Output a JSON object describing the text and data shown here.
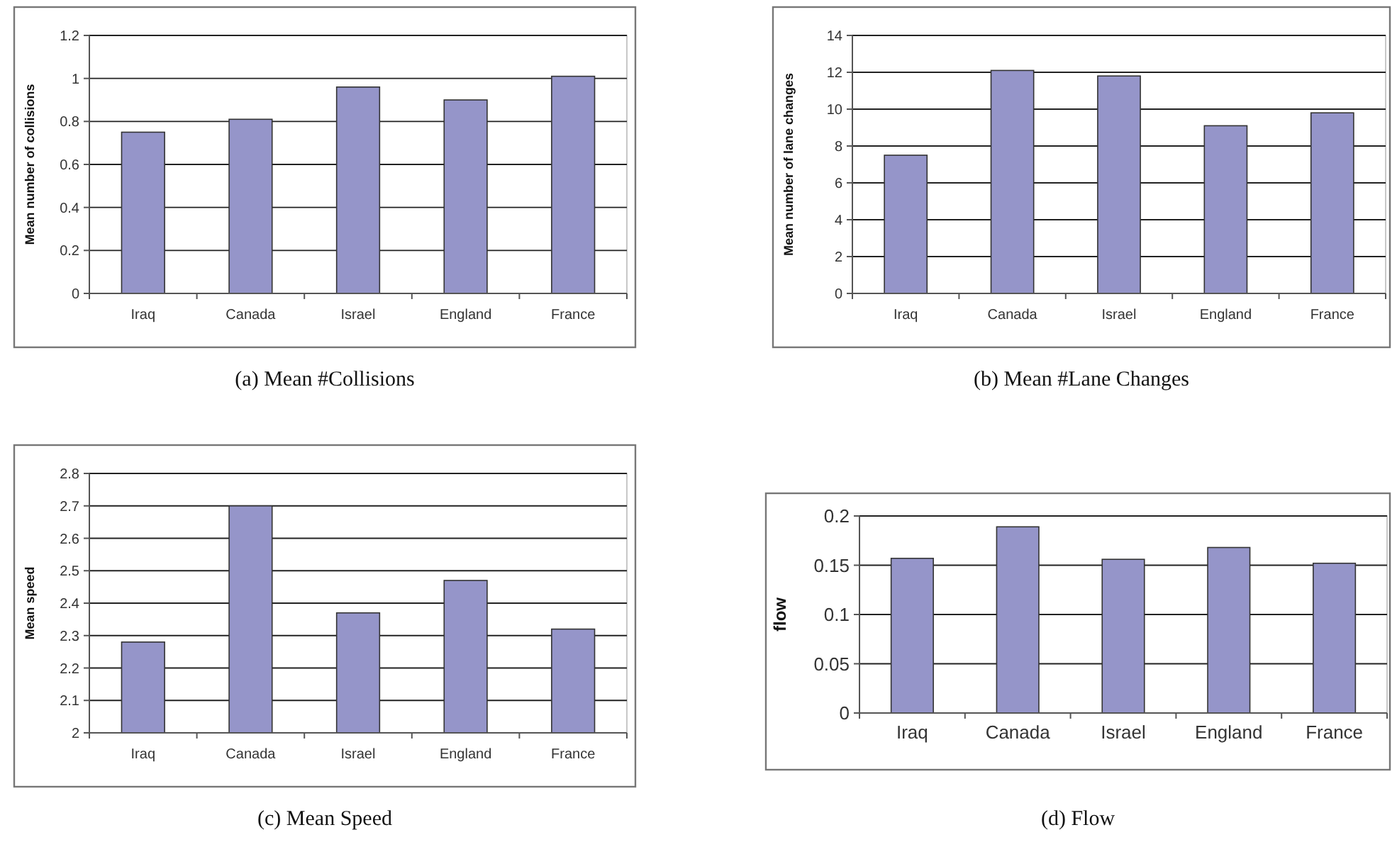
{
  "chart_data": [
    {
      "type": "bar",
      "title": "(a)  Mean #Collisions",
      "ylabel": "Mean number of collisions",
      "categories": [
        "Iraq",
        "Canada",
        "Israel",
        "England",
        "France"
      ],
      "values": [
        0.75,
        0.81,
        0.96,
        0.9,
        1.01
      ],
      "color": "#9595c9",
      "ylim": [
        0,
        1.2
      ],
      "yticks": [
        0,
        0.2,
        0.4,
        0.6,
        0.8,
        1,
        1.2
      ],
      "grid": "y"
    },
    {
      "type": "bar",
      "title": "(b)  Mean #Lane Changes",
      "ylabel": "Mean number of lane changes",
      "categories": [
        "Iraq",
        "Canada",
        "Israel",
        "England",
        "France"
      ],
      "values": [
        7.5,
        12.1,
        11.8,
        9.1,
        9.8
      ],
      "color": "#9595c9",
      "ylim": [
        0,
        14
      ],
      "yticks": [
        0,
        2,
        4,
        6,
        8,
        10,
        12,
        14
      ],
      "grid": "y"
    },
    {
      "type": "bar",
      "title": "(c)  Mean Speed",
      "ylabel": "Mean speed",
      "categories": [
        "Iraq",
        "Canada",
        "Israel",
        "England",
        "France"
      ],
      "values": [
        2.28,
        2.7,
        2.37,
        2.47,
        2.32
      ],
      "color": "#9595c9",
      "ylim": [
        2,
        2.8
      ],
      "yticks": [
        2,
        2.1,
        2.2,
        2.3,
        2.4,
        2.5,
        2.6,
        2.7,
        2.8
      ],
      "grid": "y"
    },
    {
      "type": "bar",
      "title": "(d)  Flow",
      "ylabel": "flow",
      "categories": [
        "Iraq",
        "Canada",
        "Israel",
        "England",
        "France"
      ],
      "values": [
        0.157,
        0.189,
        0.156,
        0.168,
        0.152
      ],
      "color": "#9595c9",
      "ylim": [
        0,
        0.2
      ],
      "yticks": [
        0,
        0.05,
        0.1,
        0.15,
        0.2
      ],
      "grid": "y"
    }
  ]
}
